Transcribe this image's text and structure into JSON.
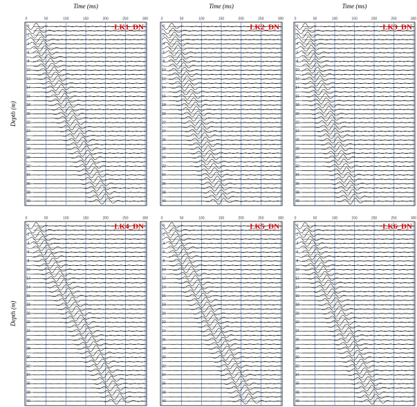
{
  "chart_data": [
    {
      "type": "seismogram",
      "title": "LK1_DN",
      "x_label": "Time (ms)",
      "y_label": "Depth (m)",
      "xlim": [
        0,
        300
      ],
      "xticks": [
        0,
        50,
        100,
        150,
        200,
        250,
        300
      ],
      "ylim": [
        -1,
        41
      ],
      "yticks": [
        0,
        2,
        4,
        6,
        8,
        10,
        12,
        14,
        16,
        18,
        20,
        22,
        24,
        26,
        28,
        30,
        32,
        34,
        36,
        38,
        40
      ]
    },
    {
      "type": "seismogram",
      "title": "LK2_DN",
      "x_label": "Time (ms)",
      "xlim": [
        0,
        300
      ],
      "xticks": [
        0,
        50,
        100,
        150,
        200,
        250,
        300
      ],
      "ylim": [
        -1,
        41
      ],
      "yticks": [
        0,
        2,
        4,
        6,
        8,
        10,
        12,
        14,
        16,
        18,
        20,
        22,
        24,
        26,
        28,
        30,
        32,
        34,
        36,
        38,
        40
      ]
    },
    {
      "type": "seismogram",
      "title": "LK3_DN",
      "x_label": "Time (ms)",
      "xlim": [
        0,
        300
      ],
      "xticks": [
        0,
        50,
        100,
        150,
        200,
        250,
        300
      ],
      "ylim": [
        -1,
        41
      ],
      "yticks": [
        0,
        2,
        4,
        6,
        8,
        10,
        12,
        14,
        16,
        18,
        20,
        22,
        24,
        26,
        28,
        30,
        32,
        34,
        36,
        38,
        40
      ]
    },
    {
      "type": "seismogram",
      "title": "LK4_DN",
      "y_label": "Depth (m)",
      "xlim": [
        0,
        300
      ],
      "xticks": [
        0,
        50,
        100,
        150,
        200,
        250,
        300
      ],
      "ylim": [
        -1,
        41
      ],
      "yticks": [
        0,
        2,
        4,
        6,
        8,
        10,
        12,
        14,
        16,
        18,
        20,
        22,
        24,
        26,
        28,
        30,
        32,
        34,
        36,
        38,
        40
      ]
    },
    {
      "type": "seismogram",
      "title": "LK5_DN",
      "xlim": [
        0,
        300
      ],
      "xticks": [
        0,
        50,
        100,
        150,
        200,
        250,
        300
      ],
      "ylim": [
        -1,
        41
      ],
      "yticks": [
        0,
        2,
        4,
        6,
        8,
        10,
        12,
        14,
        16,
        18,
        20,
        22,
        24,
        26,
        28,
        30,
        32,
        34,
        36,
        38,
        40
      ]
    },
    {
      "type": "seismogram",
      "title": "LK6_DN",
      "xlim": [
        0,
        300
      ],
      "xticks": [
        0,
        50,
        100,
        150,
        200,
        250,
        300
      ],
      "ylim": [
        -1,
        41
      ],
      "yticks": [
        0,
        2,
        4,
        6,
        8,
        10,
        12,
        14,
        16,
        18,
        20,
        22,
        24,
        26,
        28,
        30,
        32,
        34,
        36,
        38,
        40
      ]
    }
  ]
}
